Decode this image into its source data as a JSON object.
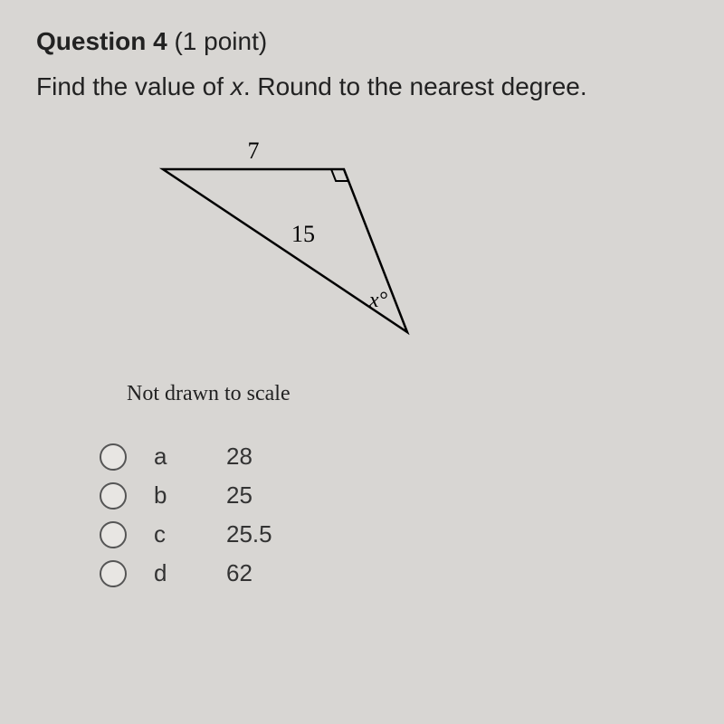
{
  "question": {
    "number_label": "Question 4",
    "points_label": "(1 point)",
    "prompt_pre": "Find the value of ",
    "prompt_var": "x",
    "prompt_post": ". Round to the nearest degree."
  },
  "figure": {
    "type": "right-triangle",
    "top_label": "7",
    "hypotenuse_label": "15",
    "angle_label": "x°",
    "stroke_color": "#000000",
    "stroke_width": 2.5,
    "right_angle_marker_size": 14,
    "vertices": {
      "A": [
        20,
        40
      ],
      "B": [
        220,
        40
      ],
      "C": [
        290,
        220
      ]
    },
    "scale_note": "Not drawn to scale",
    "scale_note_fontsize": 24
  },
  "options": [
    {
      "letter": "a",
      "value": "28"
    },
    {
      "letter": "b",
      "value": "25"
    },
    {
      "letter": "c",
      "value": "25.5"
    },
    {
      "letter": "d",
      "value": "62"
    }
  ],
  "style": {
    "background": "#d8d6d3",
    "text_color": "#222222",
    "radio_border": "#555555"
  }
}
